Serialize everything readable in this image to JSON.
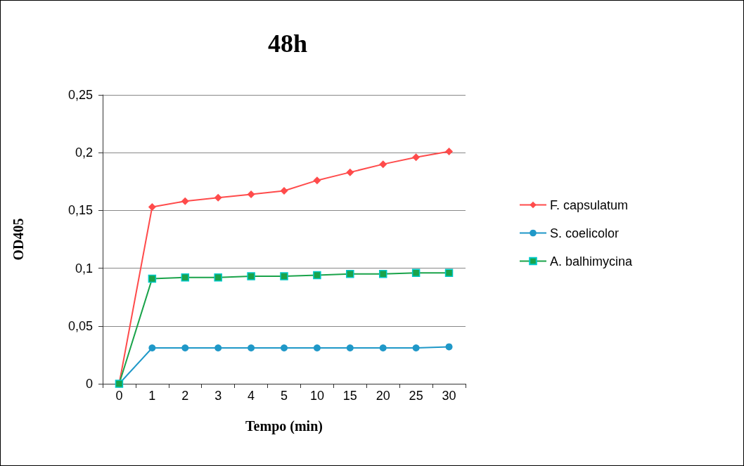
{
  "chart_data": {
    "type": "line",
    "title": "48h",
    "xlabel": "Tempo (min)",
    "ylabel": "OD405",
    "categories": [
      "0",
      "1",
      "2",
      "3",
      "4",
      "5",
      "10",
      "15",
      "20",
      "25",
      "30"
    ],
    "series": [
      {
        "name": "F. capsulatum",
        "color": "#ff4b4b",
        "marker": "diamond",
        "values": [
          0,
          0.153,
          0.158,
          0.161,
          0.164,
          0.167,
          0.176,
          0.183,
          0.19,
          0.196,
          0.201
        ]
      },
      {
        "name": "S. coelicolor",
        "color": "#1f98c8",
        "marker": "circle",
        "values": [
          0,
          0.031,
          0.031,
          0.031,
          0.031,
          0.031,
          0.031,
          0.031,
          0.031,
          0.031,
          0.032
        ]
      },
      {
        "name": "A. balhimycina",
        "color": "#1aa34a",
        "marker": "square",
        "values": [
          0,
          0.091,
          0.092,
          0.092,
          0.093,
          0.093,
          0.094,
          0.095,
          0.095,
          0.096,
          0.096
        ]
      }
    ],
    "ylim": [
      0,
      0.25
    ],
    "yticks": [
      0,
      {
        "value": 0.05,
        "label": "0,05"
      },
      {
        "value": 0.1,
        "label": "0,1"
      },
      {
        "value": 0.15,
        "label": "0,15"
      },
      {
        "value": 0.2,
        "label": "0,2"
      },
      {
        "value": 0.25,
        "label": "0,25"
      }
    ],
    "grid": "y",
    "legend": "right"
  }
}
